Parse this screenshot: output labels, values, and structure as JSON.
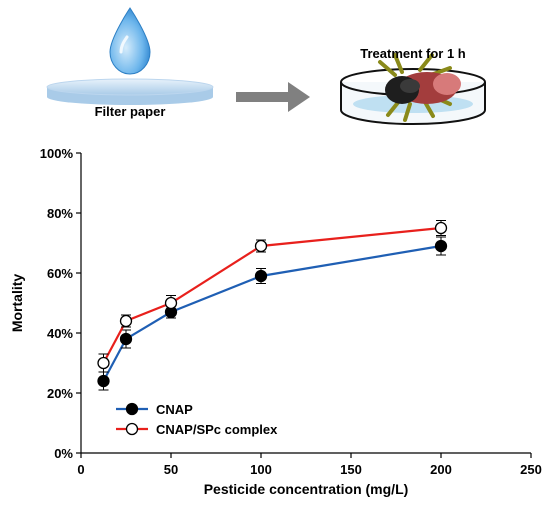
{
  "schematic": {
    "filter_paper_label": "Filter paper",
    "treatment_label": "Treatment for 1 h",
    "drop_color": "#4a9fe0",
    "paper_color": "#cfe3f3",
    "arrow_color": "#808080"
  },
  "chart_data": {
    "type": "line",
    "xlabel": "Pesticide concentration (mg/L)",
    "ylabel": "Mortality",
    "xlim": [
      0,
      250
    ],
    "ylim": [
      0,
      100
    ],
    "xticks": [
      0,
      50,
      100,
      150,
      200,
      250
    ],
    "yticks": [
      0,
      20,
      40,
      60,
      80,
      100
    ],
    "ytick_suffix": "%",
    "grid": false,
    "legend_position": "bottom-left",
    "series": [
      {
        "name": "CNAP",
        "color": "#1f5fb4",
        "marker": "filled-circle",
        "x": [
          12.5,
          25,
          50,
          100,
          200
        ],
        "y": [
          24,
          38,
          47,
          59,
          69
        ],
        "err": [
          3,
          3,
          2,
          2.5,
          3
        ]
      },
      {
        "name": "CNAP/SPc complex",
        "color": "#e8201c",
        "marker": "open-circle",
        "x": [
          12.5,
          25,
          50,
          100,
          200
        ],
        "y": [
          30,
          44,
          50,
          69,
          75
        ],
        "err": [
          3,
          2,
          2.5,
          2,
          2.5
        ]
      }
    ]
  }
}
